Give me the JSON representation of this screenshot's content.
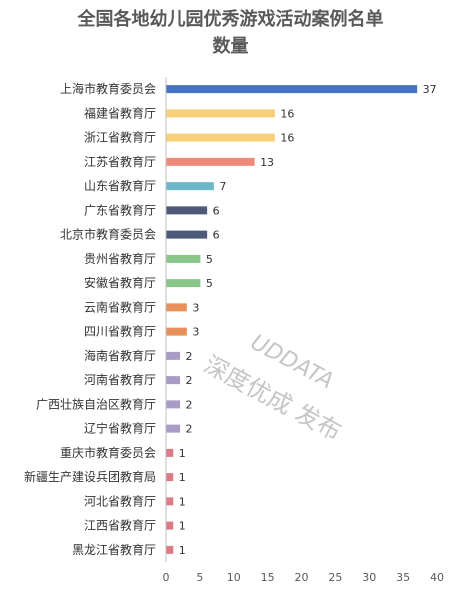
{
  "chart_data": {
    "type": "bar",
    "orientation": "horizontal",
    "title_lines": [
      "全国各地幼儿园优秀游戏活动案例名单",
      "数量"
    ],
    "categories": [
      "上海市教育委员会",
      "福建省教育厅",
      "浙江省教育厅",
      "江苏省教育厅",
      "山东省教育厅",
      "广东省教育厅",
      "北京市教育委员会",
      "贵州省教育厅",
      "安徽省教育厅",
      "云南省教育厅",
      "四川省教育厅",
      "海南省教育厅",
      "河南省教育厅",
      "广西壮族自治区教育厅",
      "辽宁省教育厅",
      "重庆市教育委员会",
      "新疆生产建设兵团教育局",
      "河北省教育厅",
      "江西省教育厅",
      "黑龙江省教育厅"
    ],
    "values": [
      37,
      16,
      16,
      13,
      7,
      6,
      6,
      5,
      5,
      3,
      3,
      2,
      2,
      2,
      2,
      1,
      1,
      1,
      1,
      1
    ],
    "colors": [
      "#4472c4",
      "#f8d07a",
      "#f8d07a",
      "#ef8a78",
      "#6db8c8",
      "#4f5a7a",
      "#4f5a7a",
      "#88c789",
      "#88c789",
      "#e8905a",
      "#e8905a",
      "#a99ac6",
      "#a99ac6",
      "#a99ac6",
      "#a99ac6",
      "#dd7a86",
      "#dd7a86",
      "#dd7a86",
      "#dd7a86",
      "#dd7a86"
    ],
    "x_ticks": [
      0,
      5,
      10,
      15,
      20,
      25,
      30,
      35,
      40
    ],
    "xlim": [
      0,
      40
    ],
    "grid": false,
    "legend": "none"
  },
  "watermark": {
    "line1": "UDDATA",
    "line2": "深度优成  发布"
  }
}
